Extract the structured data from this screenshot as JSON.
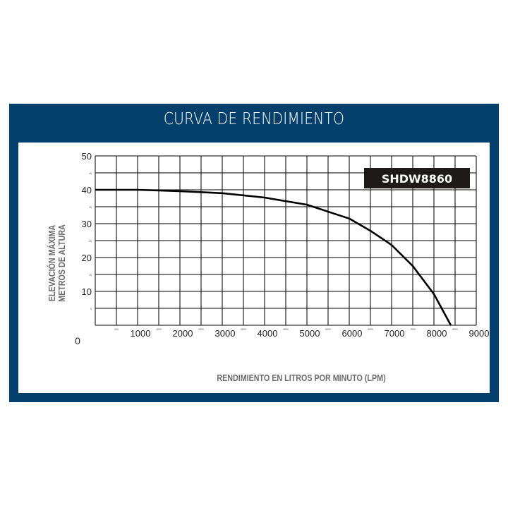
{
  "chart_data": {
    "type": "line",
    "title": "CURVA DE RENDIMIENTO",
    "xlabel": "RENDIMIENTO EN LITROS POR MINUTO (LPM)",
    "ylabel": [
      "ELEVACIÓN MÁXIMA",
      "METROS DE ALTURA"
    ],
    "xlim": [
      0,
      9000
    ],
    "ylim": [
      0,
      50
    ],
    "x_major_ticks": [
      "1000",
      "2000",
      "3000",
      "4000",
      "5000",
      "6000",
      "7000",
      "8000",
      "9000"
    ],
    "x_minor_ticks": [
      "500",
      "1500",
      "2500",
      "3500",
      "4500",
      "5500",
      "6500",
      "7500",
      "8500"
    ],
    "y_major_ticks": [
      "10",
      "20",
      "30",
      "40",
      "50"
    ],
    "y_minor_ticks": [
      "5",
      "15",
      "25",
      "35",
      "45"
    ],
    "origin_label": "0",
    "grid": true,
    "legend_label": "SHDW8860",
    "legend_placement": "top-right",
    "series": [
      {
        "name": "SHDW8860",
        "color": "#000000",
        "x": [
          0,
          1000,
          2000,
          3000,
          4000,
          5000,
          6000,
          6500,
          7000,
          7500,
          8000,
          8400
        ],
        "y": [
          40,
          40,
          39.6,
          39,
          37.7,
          35.6,
          31.5,
          27.9,
          23.7,
          17.5,
          9.2,
          0
        ]
      }
    ]
  },
  "colors": {
    "frame": "#053f6b",
    "legend_bg": "#1e1a19",
    "grid": "#333333",
    "axis_label": "#6b6b6b"
  }
}
